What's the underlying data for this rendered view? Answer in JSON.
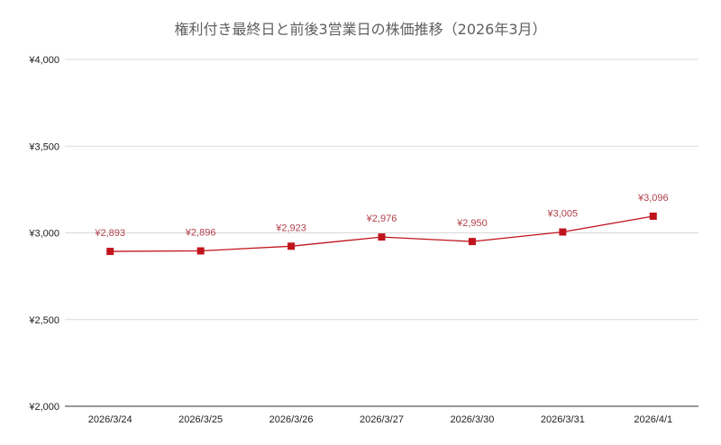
{
  "chart_data": {
    "type": "line",
    "title": "権利付き最終日と前後3営業日の株価推移（2026年3月）",
    "categories": [
      "2026/3/24",
      "2026/3/25",
      "2026/3/26",
      "2026/3/27",
      "2026/3/30",
      "2026/3/31",
      "2026/4/1"
    ],
    "series": [
      {
        "values": [
          2893,
          2896,
          2923,
          2976,
          2950,
          3005,
          3096
        ],
        "data_labels": [
          "¥2,893",
          "¥2,896",
          "¥2,923",
          "¥2,976",
          "¥2,950",
          "¥3,005",
          "¥3,096"
        ],
        "color": "#c0141c",
        "marker": "square"
      }
    ],
    "ylim": [
      2000,
      4000
    ],
    "yticks": [
      2000,
      2500,
      3000,
      3500,
      4000
    ],
    "ytick_labels": [
      "¥2,000",
      "¥2,500",
      "¥3,000",
      "¥3,500",
      "¥4,000"
    ],
    "label_color": "#b0414a",
    "grid": true,
    "legend": "none"
  }
}
